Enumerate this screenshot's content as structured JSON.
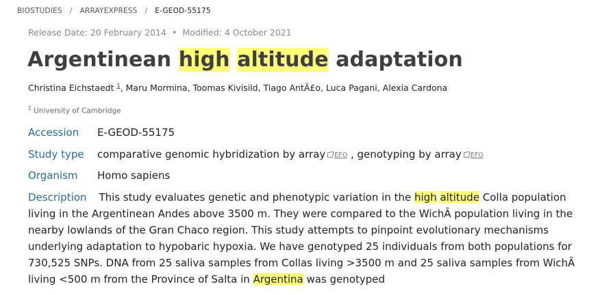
{
  "breadcrumb": {
    "items": [
      "BIOSTUDIES",
      "ARRAYEXPRESS"
    ],
    "current": "E-GEOD-55175",
    "separator": "/"
  },
  "release": {
    "release_date": "Release Date: 20 February 2014",
    "dot": "•",
    "modified": "Modified: 4 October 2021"
  },
  "title": {
    "part1": "Argentinean ",
    "hl1": "high",
    "space": " ",
    "hl2": "altitude",
    "part2": " adaptation"
  },
  "authors": {
    "first": "Christina Eichstaedt",
    "first_sup": "1",
    "rest": ", Maru Mormina, Toomas Kivisild, Tiago AntÃ£o, Luca Pagani, Alexia Cardona"
  },
  "affiliation": {
    "sup": "1",
    "name": "University of Cambridge"
  },
  "fields": {
    "accession_label": "Accession",
    "accession_value": "E-GEOD-55175",
    "study_type_label": "Study type",
    "study_type_1": "comparative genomic hybridization by array",
    "study_type_sep": " , ",
    "study_type_2": "genotyping by array",
    "efo_label": "EFO",
    "organism_label": "Organism",
    "organism_value": "Homo sapiens",
    "description_label": "Description"
  },
  "description": {
    "t1": "This study evaluates genetic and phenotypic variation in the ",
    "hl1": "high",
    "sp": " ",
    "hl2": "altitude",
    "t2": " Colla population living in the Argentinean Andes above 3500 m. They were compared to the WichÃ population living in the nearby lowlands of the Gran Chaco region. This study attempts to pinpoint evolutionary mechanisms underlying adaptation to hypobaric hypoxia. We have genotyped 25 individuals from both populations for 730,525 SNPs. DNA from 25 saliva samples from Collas living >3500 m and 25 saliva samples from WichÃ living <500 m from the Province of Salta in ",
    "hl3": "Argentina",
    "t3": " was genotyped"
  },
  "colors": {
    "highlight": "#ffff7a",
    "label_blue": "#2a6b9d",
    "title": "#3f3f3f"
  }
}
